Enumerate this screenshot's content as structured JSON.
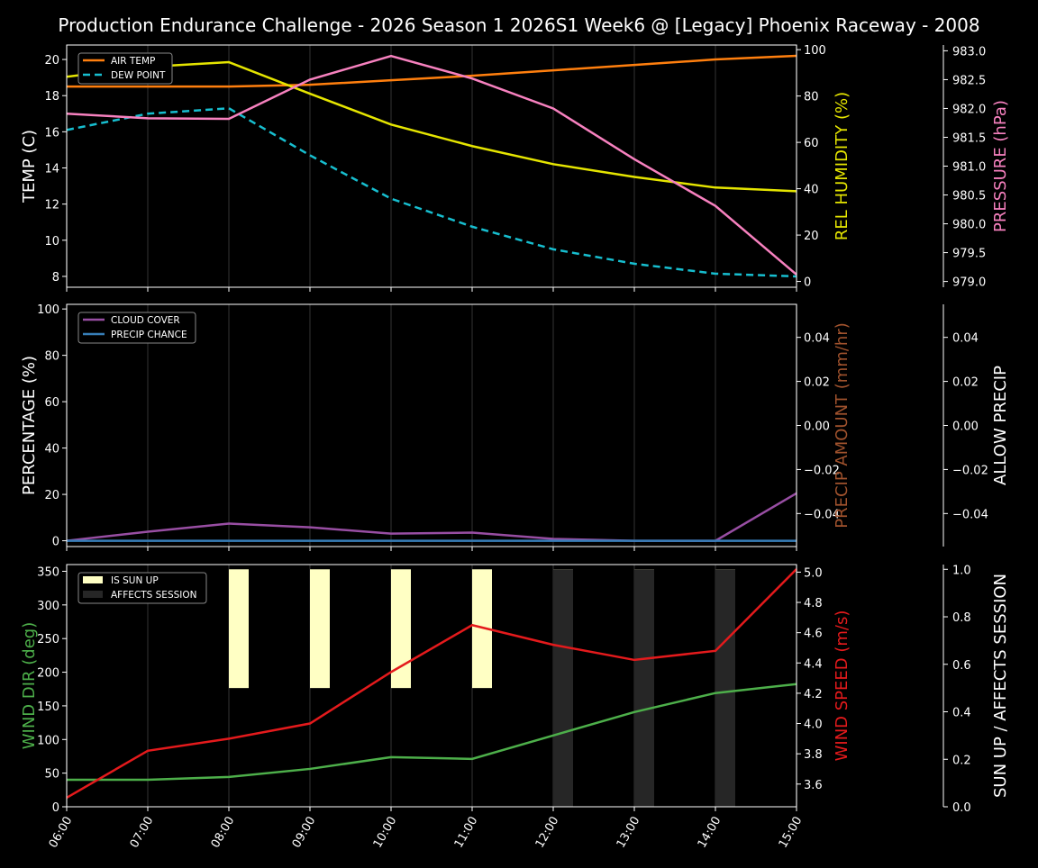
{
  "title": "Production Endurance Challenge - 2026 Season 1 2026S1 Week6 @ [Legacy] Phoenix Raceway - 2008",
  "chart_data": [
    {
      "type": "line",
      "x": [
        "06:00",
        "07:00",
        "08:00",
        "09:00",
        "10:00",
        "11:00",
        "12:00",
        "13:00",
        "14:00",
        "15:00"
      ],
      "ylabel": "TEMP (C)",
      "ylim": [
        7.4,
        20.8
      ],
      "yticks": [
        8,
        10,
        12,
        14,
        16,
        18,
        20
      ],
      "y2label": "REL HUMIDITY (%)",
      "y2lim": [
        -2.5,
        102
      ],
      "y2ticks": [
        0,
        20,
        40,
        60,
        80,
        100
      ],
      "y3label": "PRESSURE (hPa)",
      "y3lim": [
        978.9,
        983.1
      ],
      "y3ticks": [
        "979.0",
        "979.5",
        "980.0",
        "980.5",
        "981.0",
        "981.5",
        "982.0",
        "982.5",
        "983.0"
      ],
      "legend": "top-left",
      "series": [
        {
          "name": "AIR TEMP",
          "axis": "y",
          "color": "#ff7f0e",
          "values": [
            18.5,
            18.5,
            18.5,
            18.6,
            18.85,
            19.1,
            19.4,
            19.7,
            20.0,
            20.2
          ]
        },
        {
          "name": "DEW POINT",
          "axis": "y",
          "color": "#17becf",
          "dashed": true,
          "values": [
            16.1,
            17.0,
            17.3,
            14.7,
            12.3,
            10.75,
            9.5,
            8.7,
            8.15,
            8.0
          ]
        },
        {
          "axis": "y2",
          "color": "#e5e500",
          "values": [
            88.3,
            92.6,
            94.6,
            81.0,
            67.7,
            58.4,
            50.6,
            45.1,
            40.5,
            38.9
          ]
        },
        {
          "axis": "y3",
          "color": "#f781bf",
          "values": [
            981.91,
            981.83,
            981.82,
            982.5,
            982.91,
            982.52,
            982.0,
            981.12,
            980.31,
            979.12
          ]
        }
      ]
    },
    {
      "type": "line",
      "x": [
        "06:00",
        "07:00",
        "08:00",
        "09:00",
        "10:00",
        "11:00",
        "12:00",
        "13:00",
        "14:00",
        "15:00"
      ],
      "ylabel": "PERCENTAGE (%)",
      "ylim": [
        -2.5,
        102
      ],
      "yticks": [
        0,
        20,
        40,
        60,
        80,
        100
      ],
      "y2label": "PRECIP AMOUNT (mm/hr)",
      "y2lim": [
        -0.055,
        0.055
      ],
      "y2ticks": [
        "−0.04",
        "−0.02",
        "0.00",
        "0.02",
        "0.04"
      ],
      "y3label": "ALLOW PRECIP",
      "y3lim": [
        -0.055,
        0.055
      ],
      "y3ticks": [
        "−0.04",
        "−0.02",
        "0.00",
        "0.02",
        "0.04"
      ],
      "legend": "top-left",
      "series": [
        {
          "name": "CLOUD COVER",
          "axis": "y",
          "color": "#984ea3",
          "values": [
            0,
            3.9,
            7.4,
            5.8,
            3.1,
            3.5,
            0.8,
            0,
            0,
            20.5
          ]
        },
        {
          "name": "PRECIP CHANCE",
          "axis": "y",
          "color": "#377eb8",
          "values": [
            0,
            0,
            0,
            0,
            0,
            0,
            0,
            0,
            0,
            0
          ]
        }
      ]
    },
    {
      "type": "line",
      "x": [
        "06:00",
        "07:00",
        "08:00",
        "09:00",
        "10:00",
        "11:00",
        "12:00",
        "13:00",
        "14:00",
        "15:00"
      ],
      "ylabel": "WIND DIR (deg)",
      "ylim": [
        0,
        360
      ],
      "yticks": [
        0,
        50,
        100,
        150,
        200,
        250,
        300,
        350
      ],
      "y2label": "WIND SPEED (m/s)",
      "y2lim": [
        3.45,
        5.05
      ],
      "y2ticks": [
        "3.6",
        "3.8",
        "4.0",
        "4.2",
        "4.4",
        "4.6",
        "4.8",
        "5.0"
      ],
      "y3label": "SUN UP / AFFECTS SESSION",
      "y3lim": [
        0,
        1.02
      ],
      "y3ticks": [
        "0.0",
        "0.2",
        "0.4",
        "0.6",
        "0.8",
        "1.0"
      ],
      "legend": "top-left",
      "series": [
        {
          "axis": "y",
          "color": "#4daf4a",
          "values": [
            40.2,
            40.2,
            44.3,
            56.3,
            73.8,
            71.1,
            106,
            140.8,
            169,
            182.4
          ]
        },
        {
          "axis": "y2",
          "color": "#e41a1c",
          "values": [
            3.51,
            3.82,
            3.9,
            4.0,
            4.34,
            4.65,
            4.52,
            4.42,
            4.48,
            5.02
          ]
        }
      ],
      "bars": [
        {
          "name": "IS SUN UP",
          "color": "#ffffc4",
          "from": 0.5,
          "values": [
            0,
            0,
            1,
            1,
            1,
            1,
            1,
            1,
            1,
            0
          ]
        },
        {
          "name": "AFFECTS SESSION",
          "color": "#262626",
          "from": 0,
          "values": [
            0,
            0,
            0,
            0,
            0,
            0,
            1,
            1,
            1,
            0
          ]
        }
      ]
    }
  ]
}
